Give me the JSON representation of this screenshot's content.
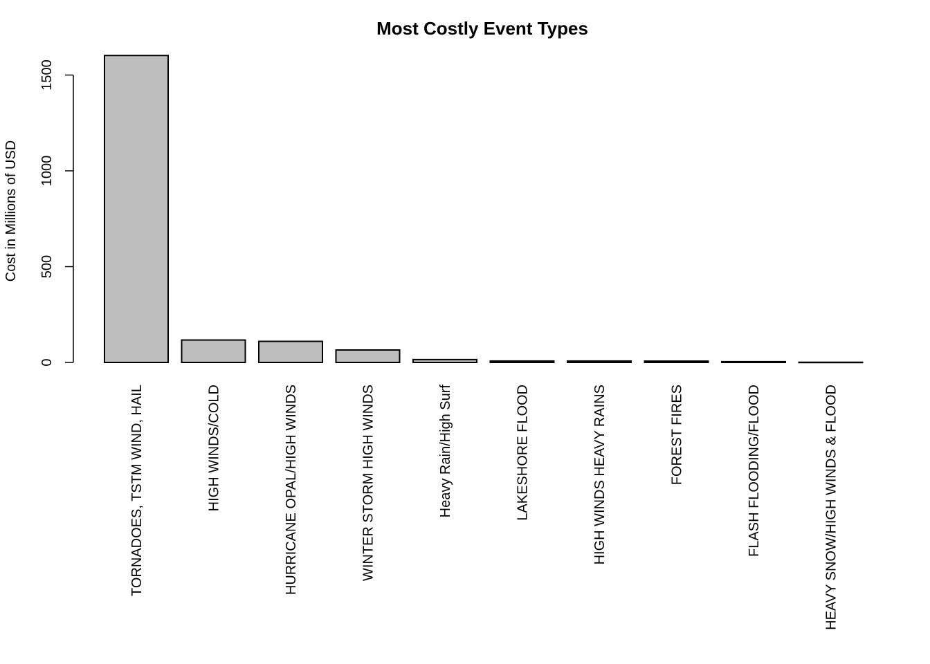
{
  "chart_data": {
    "type": "bar",
    "title": "Most Costly Event Types",
    "xlabel": "",
    "ylabel": "Cost in Millions of USD",
    "ylim": [
      0,
      1600
    ],
    "yticks": [
      0,
      500,
      1000,
      1500
    ],
    "categories": [
      "TORNADOES, TSTM WIND, HAIL",
      "HIGH WINDS/COLD",
      "HURRICANE OPAL/HIGH WINDS",
      "WINTER STORM HIGH WINDS",
      "Heavy Rain/High Surf",
      "LAKESHORE FLOOD",
      "HIGH WINDS HEAVY RAINS",
      "FOREST FIRES",
      "FLASH FLOODING/FLOOD",
      "HEAVY SNOW/HIGH WINDS & FLOOD"
    ],
    "values": [
      1602,
      117,
      110,
      65,
      15,
      7.5,
      7.5,
      7.0,
      4.0,
      1.0
    ],
    "bar_color": "#bebebe",
    "grid": false,
    "legend": "none"
  }
}
